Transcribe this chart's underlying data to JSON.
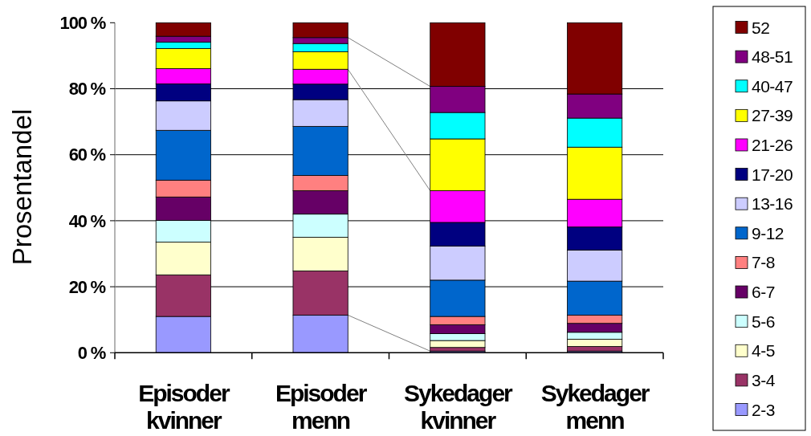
{
  "chart_data": {
    "type": "bar",
    "stacked": true,
    "categories": [
      "Episoder kvinner",
      "Episoder menn",
      "Sykedager kvinner",
      "Sykedager menn"
    ],
    "ylabel": "Prosentandel",
    "ylim": [
      0,
      100
    ],
    "yticks": [
      {
        "value": 0,
        "label": "0 %"
      },
      {
        "value": 20,
        "label": "20 %"
      },
      {
        "value": 40,
        "label": "40 %"
      },
      {
        "value": 60,
        "label": "60 %"
      },
      {
        "value": 80,
        "label": "80 %"
      },
      {
        "value": 100,
        "label": "100 %"
      }
    ],
    "grid": "y",
    "legend": "right",
    "series": [
      {
        "name": "2-3",
        "color": "#9999ff",
        "values": [
          11.0,
          11.4,
          0.5,
          0.5
        ]
      },
      {
        "name": "3-4",
        "color": "#993366",
        "values": [
          12.6,
          13.4,
          1.1,
          1.4
        ]
      },
      {
        "name": "4-5",
        "color": "#ffffcc",
        "values": [
          9.9,
          10.2,
          2.1,
          2.2
        ]
      },
      {
        "name": "5-6",
        "color": "#ccffff",
        "values": [
          6.6,
          7.0,
          2.1,
          2.1
        ]
      },
      {
        "name": "6-7",
        "color": "#660066",
        "values": [
          7.1,
          7.1,
          2.7,
          2.7
        ]
      },
      {
        "name": "7-8",
        "color": "#ff8080",
        "values": [
          5.1,
          4.6,
          2.5,
          2.5
        ]
      },
      {
        "name": "9-12",
        "color": "#0066cc",
        "values": [
          15.1,
          14.9,
          11.0,
          10.3
        ]
      },
      {
        "name": "13-16",
        "color": "#ccccff",
        "values": [
          8.9,
          8.1,
          10.3,
          9.4
        ]
      },
      {
        "name": "17-20",
        "color": "#000080",
        "values": [
          5.2,
          4.7,
          7.2,
          7.0
        ]
      },
      {
        "name": "21-26",
        "color": "#ff00ff",
        "values": [
          4.6,
          4.5,
          9.6,
          8.4
        ]
      },
      {
        "name": "27-39",
        "color": "#ffff00",
        "values": [
          6.1,
          5.3,
          15.7,
          15.8
        ]
      },
      {
        "name": "40-47",
        "color": "#00ffff",
        "values": [
          1.9,
          2.5,
          8.0,
          8.8
        ]
      },
      {
        "name": "48-51",
        "color": "#800080",
        "values": [
          1.8,
          1.8,
          7.9,
          7.3
        ]
      },
      {
        "name": "52",
        "color": "#800000",
        "values": [
          4.1,
          4.5,
          19.3,
          21.6
        ]
      }
    ]
  }
}
